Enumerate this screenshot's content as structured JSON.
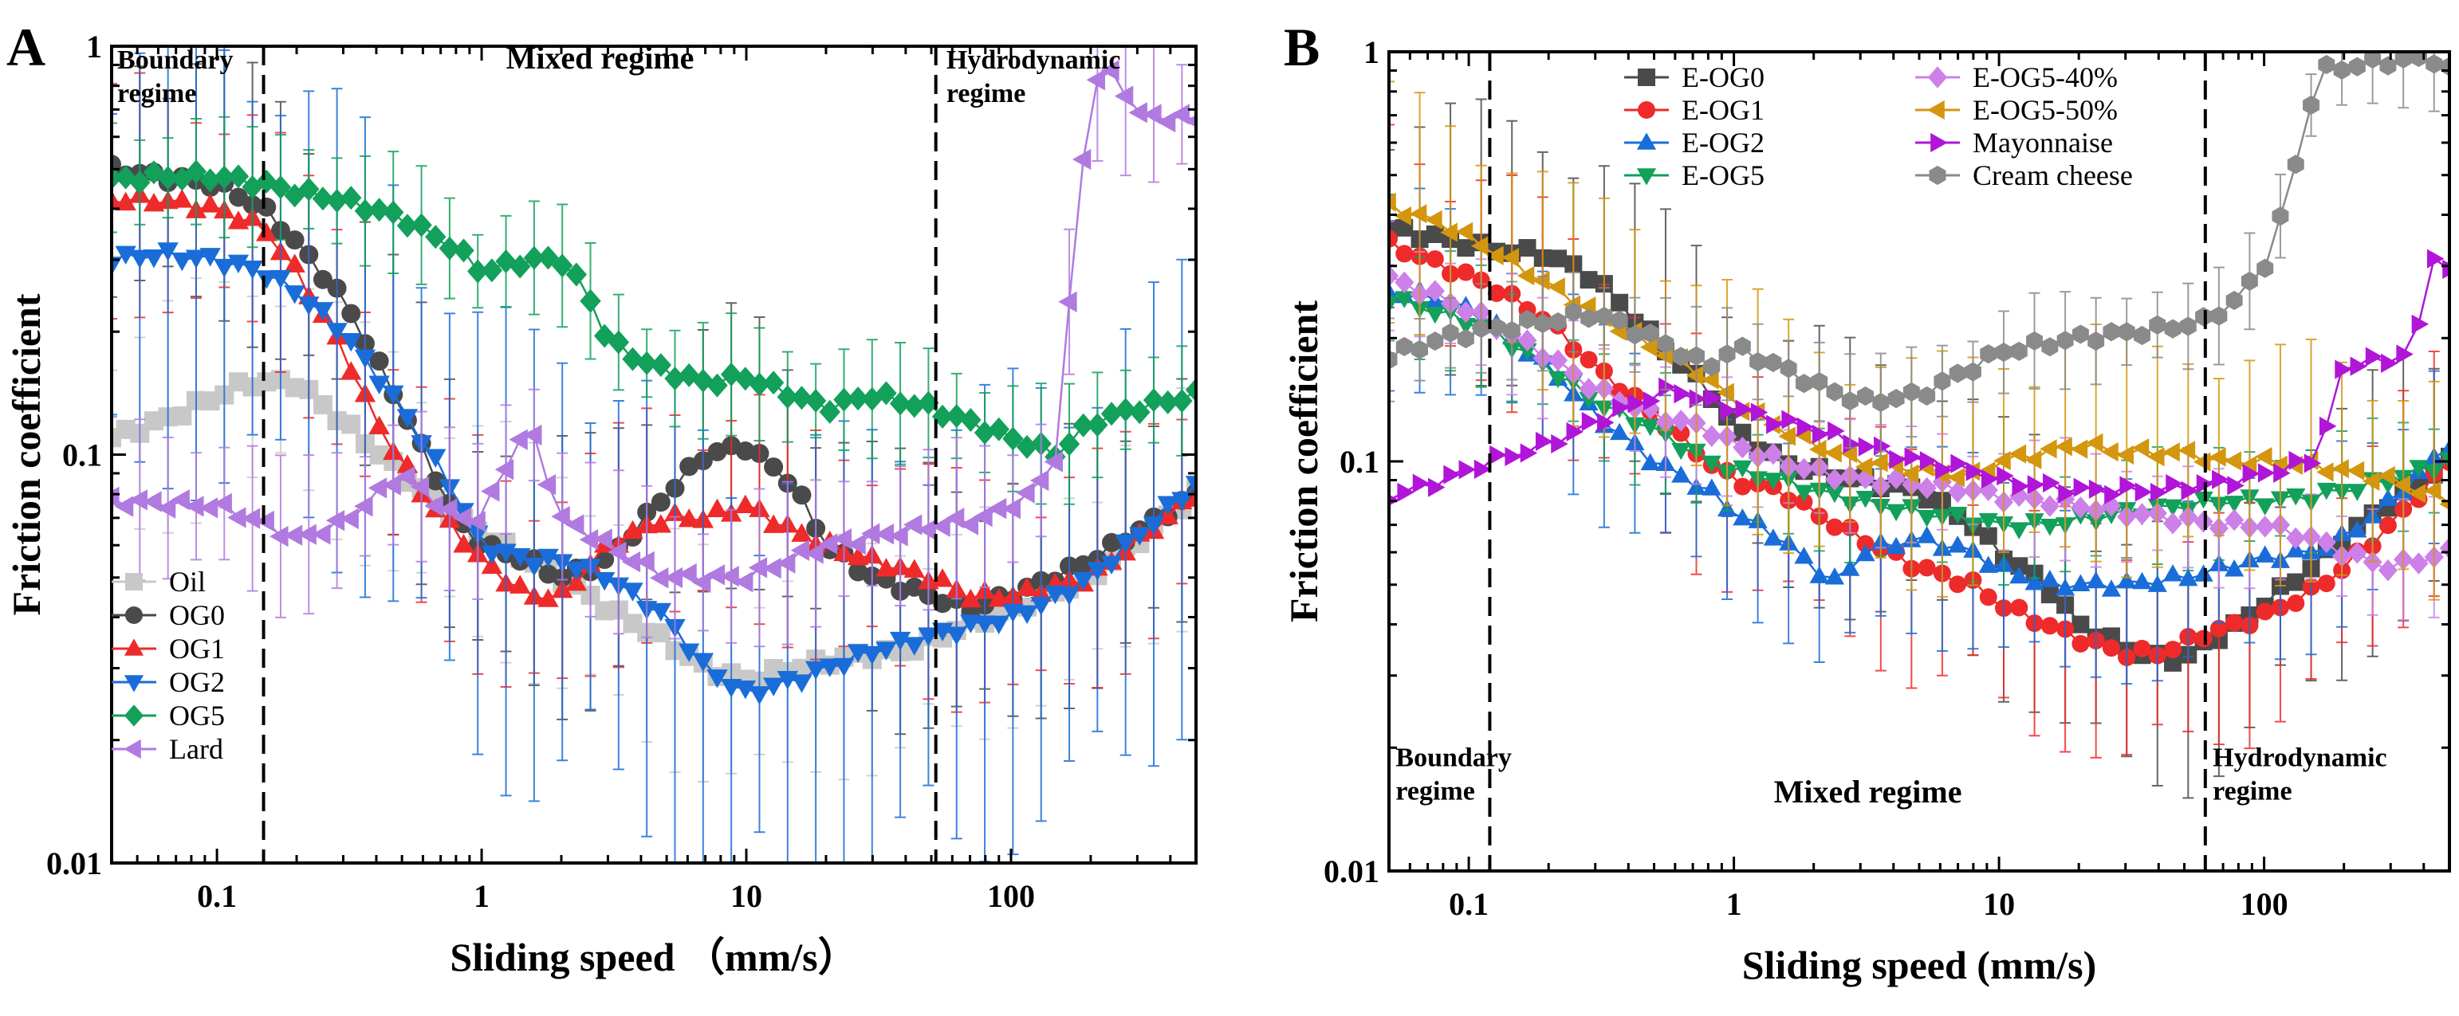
{
  "chart_data": [
    {
      "panel": "A",
      "type": "line",
      "xscale": "log",
      "yscale": "log",
      "xlim": [
        0.04,
        500
      ],
      "ylim": [
        0.01,
        1
      ],
      "xlabel": "Sliding speed （mm/s）",
      "ylabel": "Friction coefficient",
      "xticks": [
        {
          "v": 0.1,
          "label": "0.1"
        },
        {
          "v": 1,
          "label": "1"
        },
        {
          "v": 10,
          "label": "10"
        },
        {
          "v": 100,
          "label": "100"
        }
      ],
      "yticks": [
        {
          "v": 0.01,
          "label": "0.01"
        },
        {
          "v": 0.1,
          "label": "0.1"
        },
        {
          "v": 1,
          "label": "1"
        }
      ],
      "regime_lines": [
        0.15,
        52
      ],
      "regimes": [
        {
          "lines": [
            "Boundary",
            "regime"
          ],
          "size": "small",
          "anchor": "start",
          "xd": 0.042,
          "y": 0.93
        },
        {
          "lines": [
            "Mixed regime"
          ],
          "size": "big",
          "anchor": "middle",
          "xd": 2.8,
          "y": 0.93
        },
        {
          "lines": [
            "Hydrodynamic",
            "regime"
          ],
          "size": "small",
          "anchor": "start",
          "xd": 57,
          "y": 0.93
        }
      ],
      "legend": {
        "placement": "bottom-left",
        "columns": 1
      },
      "series": [
        {
          "name": "Oil",
          "color": "#c8c8c8",
          "marker": "square",
          "x": [
            0.04,
            0.06,
            0.09,
            0.13,
            0.2,
            0.3,
            0.5,
            0.8,
            1.2,
            2,
            3,
            5,
            7,
            10,
            15,
            25,
            40,
            60,
            100,
            200,
            500
          ],
          "y": [
            0.11,
            0.12,
            0.135,
            0.15,
            0.15,
            0.12,
            0.09,
            0.07,
            0.06,
            0.05,
            0.042,
            0.035,
            0.03,
            0.028,
            0.03,
            0.032,
            0.033,
            0.037,
            0.042,
            0.05,
            0.08
          ],
          "err": 0.3
        },
        {
          "name": "OG0",
          "color": "#4a4a4a",
          "marker": "circle",
          "x": [
            0.04,
            0.06,
            0.1,
            0.15,
            0.2,
            0.3,
            0.5,
            0.8,
            1,
            1.5,
            2,
            3,
            5,
            7,
            10,
            15,
            20,
            30,
            50,
            70,
            100,
            200,
            500
          ],
          "y": [
            0.5,
            0.48,
            0.46,
            0.4,
            0.33,
            0.24,
            0.13,
            0.07,
            0.06,
            0.055,
            0.05,
            0.055,
            0.08,
            0.1,
            0.105,
            0.085,
            0.06,
            0.05,
            0.045,
            0.042,
            0.045,
            0.055,
            0.08
          ],
          "err": 0.35
        },
        {
          "name": "OG1",
          "color": "#ee2a2a",
          "marker": "triangle-up",
          "x": [
            0.04,
            0.06,
            0.1,
            0.15,
            0.2,
            0.3,
            0.4,
            0.6,
            1,
            1.5,
            2,
            3,
            5,
            7,
            10,
            15,
            20,
            30,
            50,
            70,
            100,
            200,
            500
          ],
          "y": [
            0.42,
            0.42,
            0.4,
            0.36,
            0.28,
            0.18,
            0.12,
            0.08,
            0.055,
            0.045,
            0.045,
            0.06,
            0.07,
            0.07,
            0.075,
            0.065,
            0.06,
            0.055,
            0.05,
            0.045,
            0.045,
            0.05,
            0.08
          ],
          "err": 0.3
        },
        {
          "name": "OG2",
          "color": "#1a6dd8",
          "marker": "triangle-down",
          "x": [
            0.04,
            0.06,
            0.1,
            0.15,
            0.2,
            0.3,
            0.5,
            0.8,
            1,
            1.5,
            2,
            3,
            5,
            7,
            10,
            15,
            20,
            30,
            50,
            70,
            100,
            150,
            200,
            500
          ],
          "y": [
            0.3,
            0.31,
            0.3,
            0.28,
            0.25,
            0.2,
            0.13,
            0.08,
            0.06,
            0.055,
            0.055,
            0.05,
            0.04,
            0.03,
            0.026,
            0.028,
            0.03,
            0.033,
            0.036,
            0.038,
            0.04,
            0.045,
            0.05,
            0.085
          ],
          "err": 0.6
        },
        {
          "name": "OG5",
          "color": "#12a05a",
          "marker": "diamond",
          "x": [
            0.04,
            0.06,
            0.1,
            0.15,
            0.2,
            0.3,
            0.5,
            0.8,
            1,
            1.5,
            2,
            2.5,
            3,
            4,
            5,
            7,
            10,
            15,
            20,
            30,
            50,
            70,
            100,
            150,
            200,
            300,
            500
          ],
          "y": [
            0.47,
            0.48,
            0.48,
            0.46,
            0.44,
            0.42,
            0.38,
            0.32,
            0.28,
            0.3,
            0.3,
            0.25,
            0.19,
            0.17,
            0.16,
            0.15,
            0.155,
            0.14,
            0.13,
            0.14,
            0.13,
            0.12,
            0.11,
            0.1,
            0.12,
            0.13,
            0.14
          ],
          "err": 0.15
        },
        {
          "name": "Lard",
          "color": "#b07ae0",
          "marker": "triangle-left",
          "x": [
            0.04,
            0.06,
            0.1,
            0.15,
            0.2,
            0.3,
            0.5,
            0.8,
            1,
            1.2,
            1.5,
            2,
            3,
            5,
            10,
            20,
            40,
            80,
            120,
            150,
            170,
            200,
            250,
            300,
            500
          ],
          "y": [
            0.077,
            0.076,
            0.075,
            0.068,
            0.062,
            0.068,
            0.09,
            0.07,
            0.07,
            0.09,
            0.12,
            0.07,
            0.06,
            0.05,
            0.05,
            0.06,
            0.065,
            0.07,
            0.08,
            0.1,
            0.28,
            0.82,
            0.86,
            0.68,
            0.66
          ],
          "err": 0.2
        }
      ]
    },
    {
      "panel": "B",
      "type": "line",
      "xscale": "log",
      "yscale": "log",
      "xlim": [
        0.05,
        500
      ],
      "ylim": [
        0.01,
        1
      ],
      "xlabel": "Sliding speed (mm/s)",
      "ylabel": "Friction coefficient",
      "xticks": [
        {
          "v": 0.1,
          "label": "0.1"
        },
        {
          "v": 1,
          "label": "1"
        },
        {
          "v": 10,
          "label": "10"
        },
        {
          "v": 100,
          "label": "100"
        }
      ],
      "yticks": [
        {
          "v": 0.01,
          "label": "0.01"
        },
        {
          "v": 0.1,
          "label": "0.1"
        },
        {
          "v": 1,
          "label": "1"
        }
      ],
      "regime_lines": [
        0.12,
        60
      ],
      "regimes": [
        {
          "lines": [
            "Boundary",
            "regime"
          ],
          "size": "small",
          "anchor": "start",
          "xd": 0.053,
          "y": 0.019
        },
        {
          "lines": [
            "Mixed regime"
          ],
          "size": "big",
          "anchor": "middle",
          "xd": 3.2,
          "y": 0.0155
        },
        {
          "lines": [
            "Hydrodynamic",
            "regime"
          ],
          "size": "small",
          "anchor": "start",
          "xd": 64,
          "y": 0.019
        }
      ],
      "legend": {
        "placement": "top-center",
        "columns": 2
      },
      "series": [
        {
          "name": "E-OG0",
          "color": "#4a4a4a",
          "marker": "square",
          "x": [
            0.05,
            0.08,
            0.12,
            0.2,
            0.3,
            0.5,
            0.8,
            1,
            1.5,
            2,
            3,
            5,
            8,
            10,
            15,
            20,
            30,
            40,
            50,
            60,
            80,
            100,
            150,
            200,
            300,
            500
          ],
          "y": [
            0.37,
            0.35,
            0.33,
            0.32,
            0.28,
            0.2,
            0.15,
            0.12,
            0.1,
            0.095,
            0.09,
            0.085,
            0.07,
            0.06,
            0.05,
            0.04,
            0.035,
            0.033,
            0.033,
            0.036,
            0.04,
            0.045,
            0.055,
            0.065,
            0.08,
            0.1
          ],
          "err": 0.35
        },
        {
          "name": "E-OG1",
          "color": "#ee2a2a",
          "marker": "circle",
          "x": [
            0.05,
            0.08,
            0.12,
            0.2,
            0.3,
            0.5,
            0.8,
            1,
            1.5,
            2,
            3,
            5,
            8,
            10,
            15,
            20,
            30,
            40,
            50,
            60,
            80,
            100,
            150,
            200,
            300,
            500
          ],
          "y": [
            0.34,
            0.3,
            0.27,
            0.22,
            0.17,
            0.13,
            0.1,
            0.09,
            0.085,
            0.075,
            0.065,
            0.055,
            0.05,
            0.045,
            0.04,
            0.037,
            0.034,
            0.034,
            0.036,
            0.038,
            0.04,
            0.042,
            0.048,
            0.055,
            0.07,
            0.1
          ],
          "err": 0.3
        },
        {
          "name": "E-OG2",
          "color": "#1a6dd8",
          "marker": "triangle-up",
          "x": [
            0.05,
            0.08,
            0.12,
            0.2,
            0.3,
            0.5,
            0.8,
            1,
            1.5,
            2,
            2.5,
            3,
            5,
            8,
            10,
            15,
            20,
            30,
            50,
            70,
            100,
            150,
            200,
            300,
            500
          ],
          "y": [
            0.26,
            0.25,
            0.22,
            0.17,
            0.13,
            0.1,
            0.085,
            0.075,
            0.065,
            0.055,
            0.05,
            0.06,
            0.065,
            0.06,
            0.055,
            0.05,
            0.05,
            0.05,
            0.052,
            0.055,
            0.058,
            0.06,
            0.065,
            0.08,
            0.11
          ],
          "err": 0.25
        },
        {
          "name": "E-OG5",
          "color": "#12a05a",
          "marker": "triangle-down",
          "x": [
            0.05,
            0.08,
            0.12,
            0.2,
            0.3,
            0.5,
            0.8,
            1,
            1.5,
            2,
            3,
            5,
            8,
            10,
            15,
            20,
            30,
            50,
            70,
            100,
            150,
            200,
            300,
            500
          ],
          "y": [
            0.25,
            0.23,
            0.21,
            0.17,
            0.14,
            0.12,
            0.1,
            0.095,
            0.09,
            0.085,
            0.08,
            0.075,
            0.072,
            0.07,
            0.07,
            0.072,
            0.075,
            0.078,
            0.08,
            0.08,
            0.082,
            0.085,
            0.09,
            0.1
          ],
          "err": 0.15
        },
        {
          "name": "E-OG5-40%",
          "color": "#cc80e8",
          "marker": "diamond",
          "x": [
            0.05,
            0.08,
            0.12,
            0.2,
            0.3,
            0.5,
            0.8,
            1,
            1.5,
            2,
            3,
            5,
            8,
            10,
            15,
            20,
            30,
            50,
            70,
            100,
            150,
            200,
            300,
            500
          ],
          "y": [
            0.28,
            0.25,
            0.22,
            0.18,
            0.15,
            0.13,
            0.12,
            0.11,
            0.1,
            0.095,
            0.09,
            0.088,
            0.085,
            0.082,
            0.08,
            0.078,
            0.075,
            0.072,
            0.07,
            0.07,
            0.065,
            0.06,
            0.055,
            0.06
          ],
          "err": 0.15
        },
        {
          "name": "E-OG5-50%",
          "color": "#d4960e",
          "marker": "triangle-left",
          "x": [
            0.05,
            0.08,
            0.12,
            0.2,
            0.3,
            0.5,
            0.8,
            1,
            1.5,
            2,
            3,
            5,
            8,
            10,
            15,
            20,
            30,
            50,
            70,
            100,
            150,
            200,
            300,
            500
          ],
          "y": [
            0.42,
            0.38,
            0.33,
            0.27,
            0.23,
            0.19,
            0.16,
            0.14,
            0.12,
            0.11,
            0.1,
            0.095,
            0.092,
            0.1,
            0.105,
            0.11,
            0.105,
            0.105,
            0.1,
            0.1,
            0.098,
            0.095,
            0.09,
            0.08
          ],
          "err": 0.3
        },
        {
          "name": "Mayonnaise",
          "color": "#b015d8",
          "marker": "triangle-right",
          "x": [
            0.05,
            0.08,
            0.12,
            0.2,
            0.3,
            0.5,
            0.6,
            0.8,
            1,
            1.5,
            2,
            3,
            5,
            8,
            10,
            20,
            40,
            80,
            150,
            170,
            200,
            250,
            300,
            400,
            450,
            500
          ],
          "y": [
            0.082,
            0.09,
            0.1,
            0.11,
            0.125,
            0.145,
            0.15,
            0.14,
            0.135,
            0.125,
            0.12,
            0.11,
            0.1,
            0.095,
            0.09,
            0.085,
            0.085,
            0.09,
            0.1,
            0.12,
            0.17,
            0.18,
            0.17,
            0.22,
            0.35,
            0.3
          ],
          "err": 0
        },
        {
          "name": "Cream cheese",
          "color": "#8a8a8a",
          "marker": "hexagon",
          "x": [
            0.05,
            0.08,
            0.12,
            0.2,
            0.3,
            0.5,
            0.8,
            1,
            1.5,
            2,
            3,
            5,
            8,
            10,
            20,
            40,
            60,
            80,
            100,
            120,
            140,
            160,
            300,
            450,
            500
          ],
          "y": [
            0.18,
            0.2,
            0.21,
            0.22,
            0.23,
            0.2,
            0.17,
            0.19,
            0.17,
            0.155,
            0.14,
            0.145,
            0.17,
            0.185,
            0.2,
            0.21,
            0.22,
            0.25,
            0.3,
            0.42,
            0.62,
            0.9,
            0.95,
            0.96,
            0.9
          ],
          "err": 0.12
        }
      ]
    }
  ]
}
